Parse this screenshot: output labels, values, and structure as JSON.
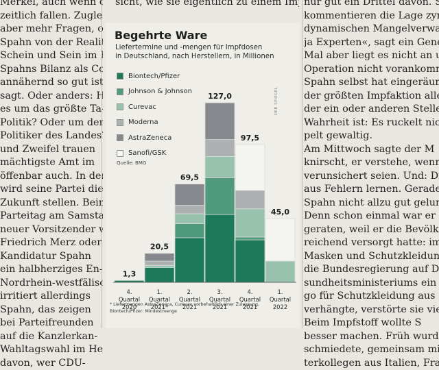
{
  "article": {
    "left_lines": [
      "Merkel, auch wenn der-",
      "zeitlich fallen. Zugleich",
      "aber mehr Fragen, ob die",
      "Spahn von der Realität",
      "Schein und Sein im Ein-",
      "Spahns Bilanz als Coro-",
      "annähernd so gut ist wie",
      "sagt. Oder anders: Han-",
      "es um das größte Ta-",
      "Politik? Oder um den",
      "Politiker des Landes?",
      "und Zweifel trauen",
      "mächtigste Amt im",
      "öffenbar auch. In der",
      "wird seine Partei die",
      "Zukunft stellen. Beim",
      "Parteitag am Samstag wird",
      "neuer Vorsitzender wird:",
      "Friedrich Merz oder Ar-",
      "Kandidatur Spahn",
      "ein halbherziges En-",
      "Nordrhein-westfälischen",
      "irritiert allerdings",
      "Spahn, das zeigen",
      "bei Parteifreunden",
      "auf die Kanzlerkan-",
      "Wahltagswahl im Herbst",
      "davon, wer CDU-"
    ],
    "top_line": "sicht, wie sie eigentlich zu einem Impf-",
    "right_lines": [
      "nur gut ein Drittel davon. Spie",
      "kommentieren die Lage zynisch",
      "dynamischen Mangelverwaltu",
      "ja Experten«, sagt ein Gener",
      "Mal aber liegt es nicht an ur",
      "Operation nicht vorankommt.",
      "Spahn selbst hat eingeräumt",
      "der größten Impfaktion aller",
      "der ein oder anderen Stelle ru",
      "Wahrheit ist: Es ruckelt nicht",
      "pelt gewaltig.",
      "Am Mittwoch sagte der M",
      "knirscht, er verstehe, wenn d",
      "verunsichert seien. Und: Die I",
      "aus Fehlern lernen. Gerade",
      "Spahn nicht allzu gut gelun",
      "Denn schon einmal war er",
      "geraten, weil er die Bevölker",
      "reichend versorgt hatte: im",
      "Masken und Schutzkleidun",
      "die Bundesregierung auf D",
      "sundheitsministeriums ein A",
      "go für Schutzkleidung aus",
      "verhängte, verstörte sie vie",
      "Beim Impfstoff wollte S",
      "besser machen. Früh wurd",
      "schmiedete, gemeinsam mi",
      "terkollegen aus Italien, Fran"
    ]
  },
  "chart_data": {
    "type": "bar",
    "stacked": true,
    "title": "Begehrte Ware",
    "subtitle_lines": [
      "Liefertermine und -mengen für Impfdosen",
      "in Deutschland, nach Herstellern, in Millionen"
    ],
    "categories": [
      [
        "4.",
        "Quartal",
        "2020"
      ],
      [
        "1.",
        "Quartal",
        "2021*"
      ],
      [
        "2.",
        "Quartal",
        "2021"
      ],
      [
        "3.",
        "Quartal",
        "2021"
      ],
      [
        "4.",
        "Quartal",
        "2021"
      ],
      [
        "1.",
        "Quartal",
        "2022"
      ]
    ],
    "totals": [
      1.3,
      20.5,
      69.5,
      127.0,
      97.5,
      45.0
    ],
    "total_labels": [
      "1,3",
      "20,5",
      "69,5",
      "127,0",
      "97,5",
      "45,0"
    ],
    "series": [
      {
        "name": "Biontech/Pfizer",
        "color": "#1c7a5a",
        "values": [
          1.3,
          10.5,
          31.5,
          48.0,
          30.0,
          0
        ]
      },
      {
        "name": "Johnson & Johnson",
        "color": "#4f9a7c",
        "values": [
          0,
          0,
          10.0,
          26.0,
          2.0,
          0
        ]
      },
      {
        "name": "Curevac",
        "color": "#98c2ae",
        "values": [
          0,
          1.5,
          7.0,
          15.0,
          20.0,
          15.0
        ]
      },
      {
        "name": "Moderna",
        "color": "#acb0b1",
        "values": [
          0,
          3.0,
          6.0,
          12.0,
          13.0,
          0
        ]
      },
      {
        "name": "AstraZeneca",
        "color": "#86888d",
        "values": [
          0,
          5.5,
          15.0,
          26.0,
          0,
          0
        ]
      },
      {
        "name": "Sanofi/GSK",
        "color": "#f4f4f1",
        "values": [
          0,
          0,
          0,
          0,
          32.5,
          30.0
        ]
      }
    ],
    "source": "Quelle: BMG",
    "credit": "DER SPIEGEL",
    "footnote_lines": [
      "* Liefermengen AstraZeneca, Curevac vorbehaltlich einer Zulassung,",
      "Biontech/Pfizer: Mindestmenge"
    ],
    "ylim": [
      0,
      127
    ],
    "xlabel": "",
    "ylabel": "",
    "grid": false
  }
}
